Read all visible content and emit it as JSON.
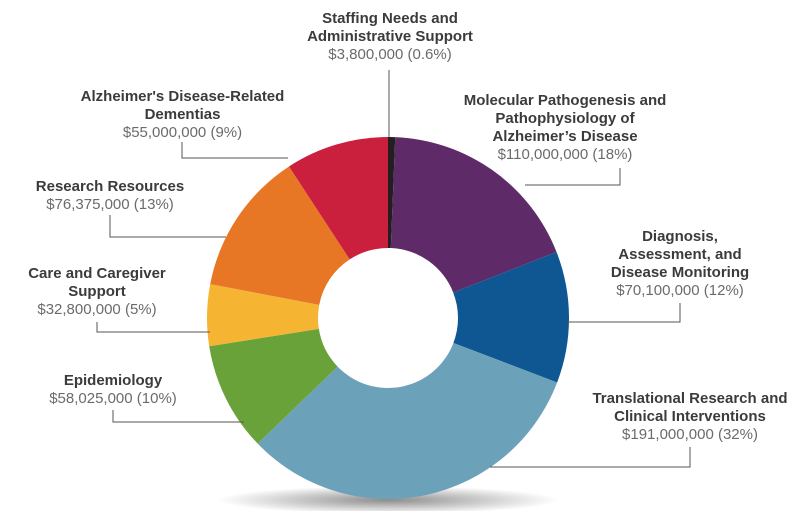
{
  "chart_data": {
    "type": "pie",
    "variant": "donut",
    "start": "top",
    "direction": "clockwise",
    "slices": [
      {
        "label": "Staffing Needs and Administrative Support",
        "value": 3800000,
        "value_text": "$3,800,000 (0.6%)",
        "percent": 0.6,
        "color": "#231f20"
      },
      {
        "label": "Molecular Pathogenesis and Pathophysiology of Alzheimer’s Disease",
        "value": 110000000,
        "value_text": "$110,000,000 (18%)",
        "percent": 18,
        "color": "#5f2a68"
      },
      {
        "label": "Diagnosis, Assessment, and Disease Monitoring",
        "value": 70100000,
        "value_text": "$70,100,000 (12%)",
        "percent": 12,
        "color": "#0e5793"
      },
      {
        "label": "Translational Research and Clinical Interventions",
        "value": 191000000,
        "value_text": "$191,000,000 (32%)",
        "percent": 32,
        "color": "#6ca2b9"
      },
      {
        "label": "Epidemiology",
        "value": 58025000,
        "value_text": "$58,025,000 (10%)",
        "percent": 10,
        "color": "#6aa23a"
      },
      {
        "label": "Care and Caregiver Support",
        "value": 32800000,
        "value_text": "$32,800,000 (5%)",
        "percent": 5,
        "color": "#f6b433"
      },
      {
        "label": "Research Resources",
        "value": 76375000,
        "value_text": "$76,375,000 (13%)",
        "percent": 13,
        "color": "#e87725"
      },
      {
        "label": "Alzheimer's Disease-Related Dementias",
        "value": 55000000,
        "value_text": "$55,000,000 (9%)",
        "percent": 9,
        "color": "#cb1f3e"
      }
    ]
  }
}
